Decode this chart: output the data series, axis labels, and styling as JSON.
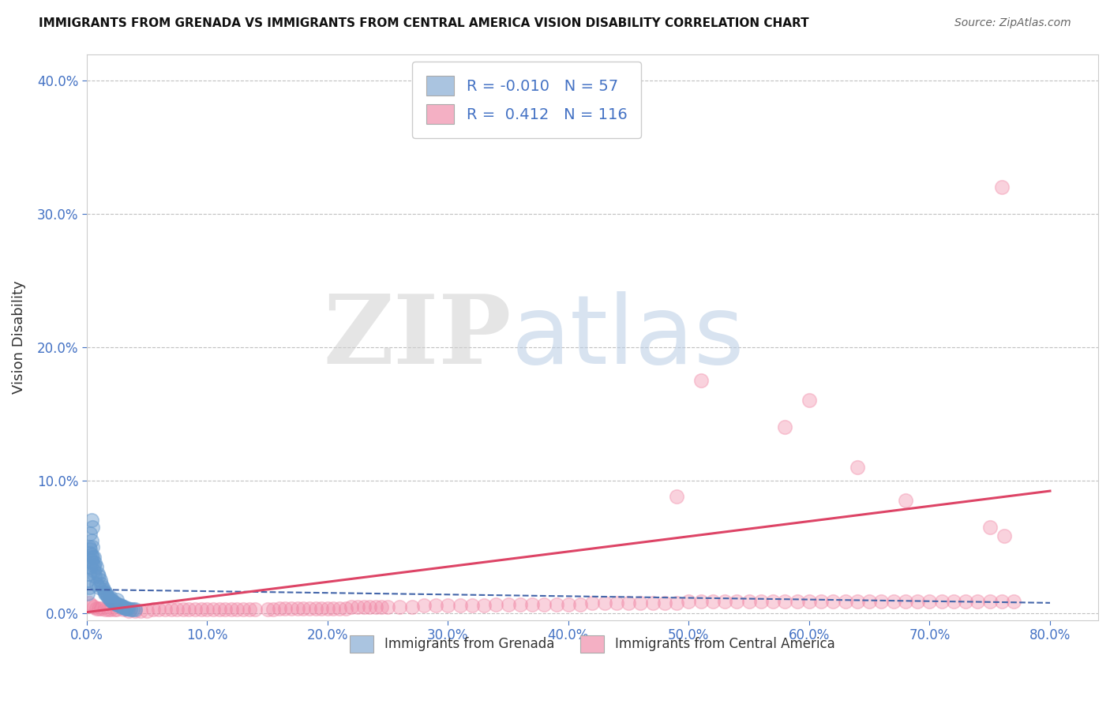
{
  "title": "IMMIGRANTS FROM GRENADA VS IMMIGRANTS FROM CENTRAL AMERICA VISION DISABILITY CORRELATION CHART",
  "source": "Source: ZipAtlas.com",
  "ylabel": "Vision Disability",
  "legend_labels": [
    "Immigrants from Grenada",
    "Immigrants from Central America"
  ],
  "legend_colors": [
    "#aac4e0",
    "#f4b0c4"
  ],
  "legend_r": [
    -0.01,
    0.412
  ],
  "legend_n": [
    57,
    116
  ],
  "blue_color": "#6699cc",
  "pink_color": "#f080a0",
  "blue_line_color": "#4466aa",
  "pink_line_color": "#dd4466",
  "xlim": [
    0.0,
    0.84
  ],
  "ylim": [
    -0.005,
    0.42
  ],
  "xticks": [
    0.0,
    0.1,
    0.2,
    0.3,
    0.4,
    0.5,
    0.6,
    0.7,
    0.8
  ],
  "yticks": [
    0.0,
    0.1,
    0.2,
    0.3,
    0.4
  ],
  "watermark_zip": "ZIP",
  "watermark_atlas": "atlas",
  "background_color": "#ffffff",
  "grid_color": "#bbbbbb",
  "title_color": "#111111",
  "axis_label_color": "#4472c4",
  "blue_scatter_x": [
    0.001,
    0.002,
    0.003,
    0.003,
    0.004,
    0.004,
    0.005,
    0.005,
    0.006,
    0.007,
    0.008,
    0.009,
    0.01,
    0.011,
    0.012,
    0.013,
    0.014,
    0.015,
    0.016,
    0.017,
    0.018,
    0.019,
    0.02,
    0.021,
    0.022,
    0.023,
    0.024,
    0.025,
    0.026,
    0.027,
    0.028,
    0.029,
    0.03,
    0.031,
    0.032,
    0.033,
    0.034,
    0.036,
    0.038,
    0.04,
    0.001,
    0.002,
    0.003,
    0.004,
    0.005,
    0.006,
    0.007,
    0.008,
    0.002,
    0.003,
    0.004,
    0.005,
    0.006,
    0.01,
    0.015,
    0.02,
    0.025
  ],
  "blue_scatter_y": [
    0.025,
    0.03,
    0.045,
    0.06,
    0.055,
    0.07,
    0.05,
    0.065,
    0.042,
    0.038,
    0.035,
    0.03,
    0.028,
    0.025,
    0.022,
    0.02,
    0.018,
    0.016,
    0.015,
    0.013,
    0.012,
    0.011,
    0.01,
    0.009,
    0.009,
    0.008,
    0.008,
    0.007,
    0.007,
    0.006,
    0.006,
    0.005,
    0.005,
    0.005,
    0.004,
    0.004,
    0.004,
    0.003,
    0.003,
    0.003,
    0.015,
    0.02,
    0.035,
    0.04,
    0.038,
    0.032,
    0.028,
    0.022,
    0.05,
    0.048,
    0.044,
    0.042,
    0.036,
    0.02,
    0.015,
    0.012,
    0.01
  ],
  "pink_scatter_x": [
    0.002,
    0.004,
    0.006,
    0.008,
    0.01,
    0.012,
    0.015,
    0.018,
    0.02,
    0.023,
    0.025,
    0.03,
    0.035,
    0.04,
    0.045,
    0.05,
    0.055,
    0.06,
    0.065,
    0.07,
    0.075,
    0.08,
    0.085,
    0.09,
    0.095,
    0.1,
    0.105,
    0.11,
    0.115,
    0.12,
    0.125,
    0.13,
    0.135,
    0.14,
    0.15,
    0.155,
    0.16,
    0.165,
    0.17,
    0.175,
    0.18,
    0.185,
    0.19,
    0.195,
    0.2,
    0.205,
    0.21,
    0.215,
    0.22,
    0.225,
    0.23,
    0.235,
    0.24,
    0.245,
    0.25,
    0.26,
    0.27,
    0.28,
    0.29,
    0.3,
    0.31,
    0.32,
    0.33,
    0.34,
    0.35,
    0.36,
    0.37,
    0.38,
    0.39,
    0.4,
    0.41,
    0.42,
    0.43,
    0.44,
    0.45,
    0.46,
    0.47,
    0.48,
    0.49,
    0.5,
    0.51,
    0.52,
    0.53,
    0.54,
    0.55,
    0.56,
    0.57,
    0.58,
    0.59,
    0.6,
    0.61,
    0.62,
    0.63,
    0.64,
    0.65,
    0.66,
    0.67,
    0.68,
    0.69,
    0.7,
    0.71,
    0.72,
    0.73,
    0.74,
    0.75,
    0.76,
    0.77,
    0.49,
    0.51,
    0.58,
    0.6,
    0.64,
    0.68,
    0.75,
    0.76,
    0.762
  ],
  "pink_scatter_y": [
    0.008,
    0.006,
    0.005,
    0.004,
    0.004,
    0.004,
    0.003,
    0.003,
    0.003,
    0.003,
    0.003,
    0.003,
    0.002,
    0.002,
    0.002,
    0.002,
    0.003,
    0.003,
    0.003,
    0.003,
    0.003,
    0.003,
    0.003,
    0.003,
    0.003,
    0.003,
    0.003,
    0.003,
    0.003,
    0.003,
    0.003,
    0.003,
    0.003,
    0.003,
    0.003,
    0.003,
    0.004,
    0.004,
    0.004,
    0.004,
    0.004,
    0.004,
    0.004,
    0.004,
    0.004,
    0.004,
    0.004,
    0.004,
    0.005,
    0.005,
    0.005,
    0.005,
    0.005,
    0.005,
    0.005,
    0.005,
    0.005,
    0.006,
    0.006,
    0.006,
    0.006,
    0.006,
    0.006,
    0.007,
    0.007,
    0.007,
    0.007,
    0.007,
    0.007,
    0.007,
    0.007,
    0.008,
    0.008,
    0.008,
    0.008,
    0.008,
    0.008,
    0.008,
    0.008,
    0.009,
    0.009,
    0.009,
    0.009,
    0.009,
    0.009,
    0.009,
    0.009,
    0.009,
    0.009,
    0.009,
    0.009,
    0.009,
    0.009,
    0.009,
    0.009,
    0.009,
    0.009,
    0.009,
    0.009,
    0.009,
    0.009,
    0.009,
    0.009,
    0.009,
    0.009,
    0.009,
    0.009,
    0.088,
    0.175,
    0.14,
    0.16,
    0.11,
    0.085,
    0.065,
    0.32,
    0.058
  ],
  "pink_line_x": [
    0.0,
    0.8
  ],
  "pink_line_y": [
    0.001,
    0.092
  ],
  "blue_line_x": [
    0.0,
    0.8
  ],
  "blue_line_y": [
    0.018,
    0.008
  ]
}
